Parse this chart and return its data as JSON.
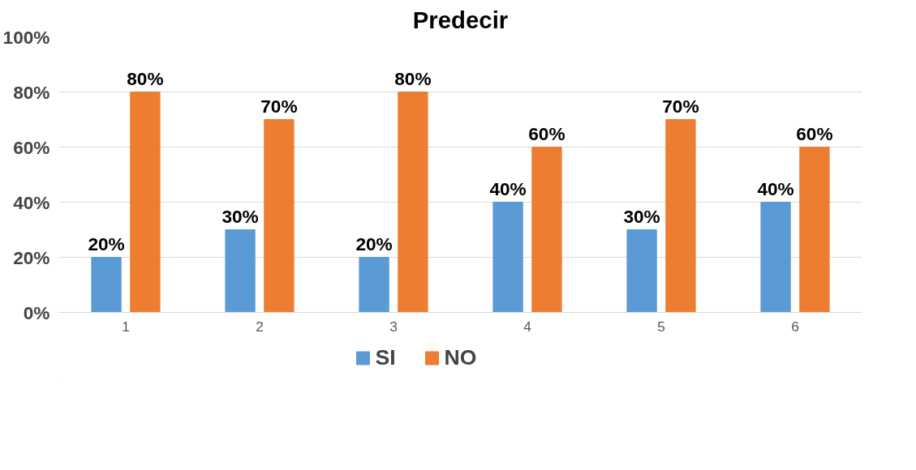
{
  "chart_data": {
    "type": "bar",
    "title": "Predecir",
    "categories": [
      "1",
      "2",
      "3",
      "4",
      "5",
      "6"
    ],
    "series": [
      {
        "name": "SI",
        "color": "#5b9bd5",
        "values": [
          20,
          30,
          20,
          40,
          30,
          40
        ],
        "value_labels": [
          "20%",
          "30%",
          "20%",
          "40%",
          "30%",
          "40%"
        ]
      },
      {
        "name": "NO",
        "color": "#ed7d31",
        "values": [
          80,
          70,
          80,
          60,
          70,
          60
        ],
        "value_labels": [
          "80%",
          "70%",
          "80%",
          "60%",
          "70%",
          "60%"
        ]
      }
    ],
    "ylim": [
      0,
      100
    ],
    "yticks": [
      {
        "value": 0,
        "label": "0%"
      },
      {
        "value": 20,
        "label": "20%"
      },
      {
        "value": 40,
        "label": "40%"
      },
      {
        "value": 60,
        "label": "60%"
      },
      {
        "value": 80,
        "label": "80%"
      },
      {
        "value": 100,
        "label": "100%"
      }
    ],
    "grid": "y",
    "legend": "bottom"
  }
}
